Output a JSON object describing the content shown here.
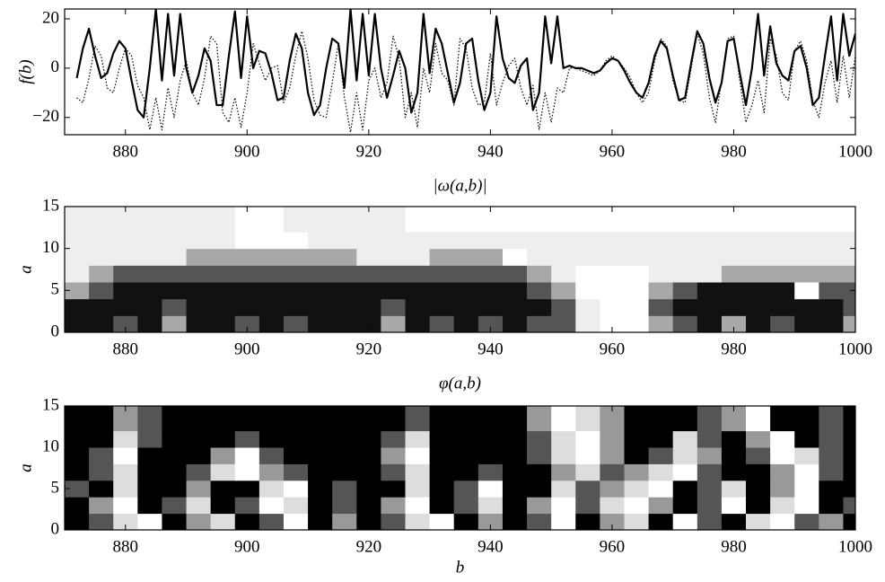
{
  "chart_data": [
    {
      "type": "line",
      "ylabel": "f(b)",
      "x": [
        872,
        873,
        874,
        875,
        876,
        877,
        878,
        879,
        880,
        881,
        882,
        883,
        884,
        885,
        886,
        887,
        888,
        889,
        890,
        891,
        892,
        893,
        894,
        895,
        896,
        897,
        898,
        899,
        900,
        901,
        902,
        903,
        904,
        905,
        906,
        907,
        908,
        909,
        910,
        911,
        912,
        913,
        914,
        915,
        916,
        917,
        918,
        919,
        920,
        921,
        922,
        923,
        924,
        925,
        926,
        927,
        928,
        929,
        930,
        931,
        932,
        933,
        934,
        935,
        936,
        937,
        938,
        939,
        940,
        941,
        942,
        943,
        944,
        945,
        946,
        947,
        948,
        949,
        950,
        951,
        952,
        953,
        954,
        955,
        956,
        957,
        958,
        959,
        960,
        961,
        962,
        963,
        964,
        965,
        966,
        967,
        968,
        969,
        970,
        971,
        972,
        973,
        974,
        975,
        976,
        977,
        978,
        979,
        980,
        981,
        982,
        983,
        984,
        985,
        986,
        987,
        988,
        989,
        990,
        991,
        992,
        993,
        994,
        995,
        996,
        997,
        998,
        999,
        1000
      ],
      "series": [
        {
          "color": "#000000",
          "style": "solid",
          "values": [
            -4,
            8,
            16,
            5,
            -4,
            -2,
            6,
            11,
            8,
            -5,
            -17,
            -20,
            0,
            24,
            -5,
            22,
            -3,
            22,
            0,
            -10,
            -3,
            8,
            3,
            -15,
            -15,
            5,
            23,
            -4,
            21,
            0,
            7,
            6,
            -2,
            -13,
            -12,
            3,
            14,
            8,
            -10,
            -19,
            -15,
            0,
            12,
            10,
            -8,
            24,
            -5,
            22,
            -3,
            22,
            0,
            -12,
            -3,
            7,
            0,
            -18,
            -10,
            22,
            -2,
            16,
            10,
            -2,
            -14,
            -6,
            10,
            12,
            -5,
            -17,
            -10,
            21,
            4,
            -4,
            -6,
            1,
            4,
            -17,
            -10,
            21,
            2,
            21,
            0,
            1,
            0,
            0,
            -1,
            -2,
            -1,
            2,
            4,
            3,
            -1,
            -6,
            -10,
            -12,
            -6,
            5,
            11,
            8,
            -3,
            -13,
            -12,
            2,
            15,
            10,
            -4,
            -14,
            -6,
            11,
            12,
            -2,
            -15,
            0,
            22,
            -3,
            17,
            2,
            -3,
            -5,
            7,
            9,
            0,
            -15,
            -12,
            5,
            21,
            -5,
            22,
            5,
            14
          ]
        },
        {
          "color": "#000000",
          "style": "dotted",
          "values": [
            -12,
            -14,
            -4,
            9,
            5,
            -8,
            -10,
            0,
            8,
            5,
            -7,
            -12,
            -25,
            -12,
            -25,
            -8,
            -20,
            -5,
            3,
            -10,
            -15,
            -4,
            13,
            10,
            -18,
            -22,
            -12,
            -24,
            -10,
            10,
            2,
            -5,
            0,
            1,
            -14,
            -8,
            5,
            15,
            4,
            -13,
            -19,
            -20,
            -6,
            10,
            -12,
            -26,
            -10,
            -25,
            -5,
            0,
            -12,
            -6,
            13,
            4,
            -20,
            -10,
            -24,
            0,
            -10,
            10,
            -2,
            -5,
            -15,
            12,
            8,
            -8,
            -15,
            -14,
            6,
            -15,
            -6,
            1,
            4,
            -8,
            -15,
            -7,
            -25,
            -10,
            -22,
            -8,
            -10,
            0,
            0,
            -1,
            -2,
            -3,
            -1,
            3,
            5,
            3,
            0,
            -4,
            -10,
            -14,
            -10,
            3,
            12,
            9,
            -5,
            -13,
            -14,
            0,
            14,
            6,
            -12,
            -22,
            -5,
            12,
            13,
            -5,
            -22,
            -15,
            -5,
            -18,
            12,
            5,
            -10,
            -13,
            7,
            11,
            3,
            -13,
            -20,
            -6,
            3,
            -14,
            5,
            -12,
            5
          ]
        }
      ],
      "xlim": [
        870,
        1000
      ],
      "xticks": [
        880,
        900,
        920,
        940,
        960,
        980,
        1000
      ],
      "ylim": [
        -27,
        24
      ],
      "yticks": [
        {
          "value": -20,
          "label": "−20"
        },
        0,
        20
      ]
    },
    {
      "type": "heatmap",
      "title": "|ω(a,b)|",
      "ylabel": "a",
      "colors": [
        "#ffffff",
        "#eeeeee",
        "#a8a8a8",
        "#555555",
        "#111111"
      ],
      "x": [
        872,
        876,
        880,
        884,
        888,
        892,
        896,
        900,
        904,
        908,
        912,
        916,
        920,
        924,
        928,
        932,
        936,
        940,
        944,
        948,
        952,
        956,
        960,
        964,
        968,
        972,
        976,
        980,
        984,
        988,
        992,
        996,
        1000
      ],
      "y": [
        1,
        3,
        5,
        7,
        9,
        11,
        13
      ],
      "z": [
        [
          4,
          4,
          3,
          4,
          2,
          4,
          4,
          3,
          4,
          3,
          4,
          4,
          4,
          2,
          4,
          3,
          4,
          3,
          4,
          3,
          3,
          1,
          0,
          0,
          2,
          3,
          4,
          2,
          4,
          3,
          4,
          4,
          2
        ],
        [
          4,
          4,
          4,
          4,
          3,
          4,
          4,
          4,
          4,
          4,
          4,
          4,
          4,
          3,
          4,
          4,
          4,
          4,
          4,
          4,
          3,
          1,
          0,
          0,
          3,
          4,
          4,
          4,
          4,
          4,
          4,
          4,
          3
        ],
        [
          2,
          3,
          4,
          4,
          4,
          4,
          4,
          4,
          4,
          4,
          4,
          4,
          4,
          4,
          4,
          4,
          4,
          4,
          4,
          3,
          2,
          0,
          0,
          0,
          2,
          3,
          4,
          4,
          4,
          4,
          0,
          3,
          3
        ],
        [
          1,
          2,
          3,
          3,
          3,
          3,
          3,
          3,
          3,
          3,
          3,
          3,
          3,
          3,
          3,
          3,
          3,
          3,
          3,
          2,
          1,
          0,
          0,
          0,
          1,
          1,
          1,
          2,
          2,
          2,
          2,
          2,
          2
        ],
        [
          1,
          1,
          1,
          1,
          1,
          2,
          2,
          2,
          2,
          2,
          2,
          2,
          1,
          1,
          1,
          2,
          2,
          2,
          0,
          1,
          1,
          1,
          1,
          1,
          1,
          1,
          1,
          1,
          1,
          1,
          1,
          1,
          1
        ],
        [
          1,
          1,
          1,
          1,
          1,
          1,
          1,
          0,
          0,
          0,
          1,
          1,
          1,
          1,
          1,
          1,
          1,
          1,
          1,
          1,
          1,
          1,
          1,
          1,
          1,
          1,
          1,
          1,
          1,
          1,
          1,
          1,
          1
        ],
        [
          1,
          1,
          1,
          1,
          1,
          1,
          1,
          0,
          0,
          1,
          1,
          1,
          1,
          1,
          0,
          0,
          0,
          0,
          0,
          0,
          0,
          0,
          0,
          0,
          0,
          0,
          0,
          0,
          0,
          0,
          0,
          0,
          0
        ]
      ],
      "xlim": [
        870,
        1000
      ],
      "xticks": [
        880,
        900,
        920,
        940,
        960,
        980,
        1000
      ],
      "ylim": [
        0,
        15
      ],
      "yticks": [
        0,
        5,
        10,
        15
      ]
    },
    {
      "type": "heatmap",
      "title": "φ(a,b)",
      "ylabel": "a",
      "xlabel": "b",
      "colors": [
        "#ffffff",
        "#dddddd",
        "#999999",
        "#555555",
        "#000000"
      ],
      "x": [
        872,
        876,
        880,
        884,
        888,
        892,
        896,
        900,
        904,
        908,
        912,
        916,
        920,
        924,
        928,
        932,
        936,
        940,
        944,
        948,
        952,
        956,
        960,
        964,
        968,
        972,
        976,
        980,
        984,
        988,
        992,
        996,
        1000
      ],
      "y": [
        1,
        3,
        5,
        7,
        9,
        11,
        13
      ],
      "z": [
        [
          4,
          3,
          1,
          0,
          4,
          2,
          1,
          4,
          3,
          0,
          4,
          2,
          4,
          3,
          1,
          0,
          4,
          2,
          4,
          3,
          0,
          4,
          2,
          1,
          4,
          0,
          3,
          4,
          1,
          0,
          3,
          2,
          4
        ],
        [
          4,
          2,
          0,
          4,
          3,
          1,
          4,
          3,
          0,
          1,
          4,
          3,
          4,
          2,
          0,
          4,
          3,
          1,
          4,
          2,
          0,
          3,
          1,
          0,
          2,
          4,
          3,
          0,
          4,
          1,
          0,
          4,
          3
        ],
        [
          3,
          4,
          1,
          4,
          4,
          2,
          4,
          4,
          1,
          0,
          4,
          3,
          4,
          4,
          1,
          4,
          3,
          0,
          4,
          4,
          1,
          3,
          2,
          1,
          0,
          4,
          3,
          1,
          4,
          2,
          0,
          4,
          4
        ],
        [
          4,
          3,
          1,
          4,
          4,
          3,
          1,
          0,
          2,
          3,
          4,
          4,
          4,
          3,
          1,
          4,
          4,
          3,
          4,
          4,
          2,
          1,
          3,
          2,
          1,
          0,
          3,
          4,
          4,
          2,
          0,
          3,
          4
        ],
        [
          4,
          3,
          0,
          4,
          4,
          4,
          2,
          0,
          3,
          4,
          4,
          4,
          4,
          2,
          0,
          4,
          4,
          4,
          4,
          3,
          1,
          0,
          2,
          4,
          3,
          1,
          2,
          4,
          3,
          0,
          1,
          3,
          4
        ],
        [
          4,
          4,
          1,
          3,
          4,
          4,
          4,
          3,
          4,
          4,
          4,
          4,
          4,
          3,
          1,
          4,
          4,
          4,
          4,
          3,
          1,
          0,
          2,
          4,
          4,
          1,
          3,
          4,
          2,
          0,
          4,
          3,
          4
        ],
        [
          4,
          4,
          2,
          3,
          4,
          4,
          4,
          4,
          4,
          4,
          4,
          4,
          4,
          4,
          3,
          4,
          4,
          4,
          4,
          2,
          0,
          1,
          2,
          4,
          4,
          4,
          3,
          2,
          0,
          4,
          4,
          3,
          4
        ]
      ],
      "xlim": [
        870,
        1000
      ],
      "xticks": [
        880,
        900,
        920,
        940,
        960,
        980,
        1000
      ],
      "ylim": [
        0,
        15
      ],
      "yticks": [
        0,
        5,
        10,
        15
      ]
    }
  ]
}
